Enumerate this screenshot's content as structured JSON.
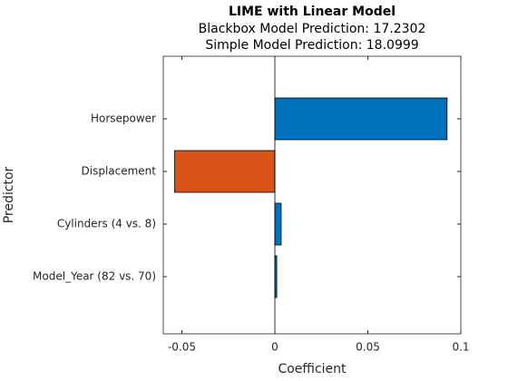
{
  "chart_data": {
    "type": "barh",
    "title": "LIME with Linear Model",
    "subtitle": [
      "Blackbox Model Prediction: 17.2302",
      "Simple Model Prediction: 18.0999"
    ],
    "xlabel": "Coefficient",
    "ylabel": "Predictor",
    "categories": [
      "Horsepower",
      "Displacement",
      "Cylinders (4 vs. 8)",
      "Model_Year (82 vs. 70)"
    ],
    "values": [
      0.0926,
      -0.0539,
      0.0034,
      0.001
    ],
    "colors": [
      "#0072bd",
      "#d95319",
      "#0072bd",
      "#0072bd"
    ],
    "xlim": [
      -0.06,
      0.1
    ],
    "xticks": [
      -0.05,
      0,
      0.05,
      0.1
    ]
  }
}
